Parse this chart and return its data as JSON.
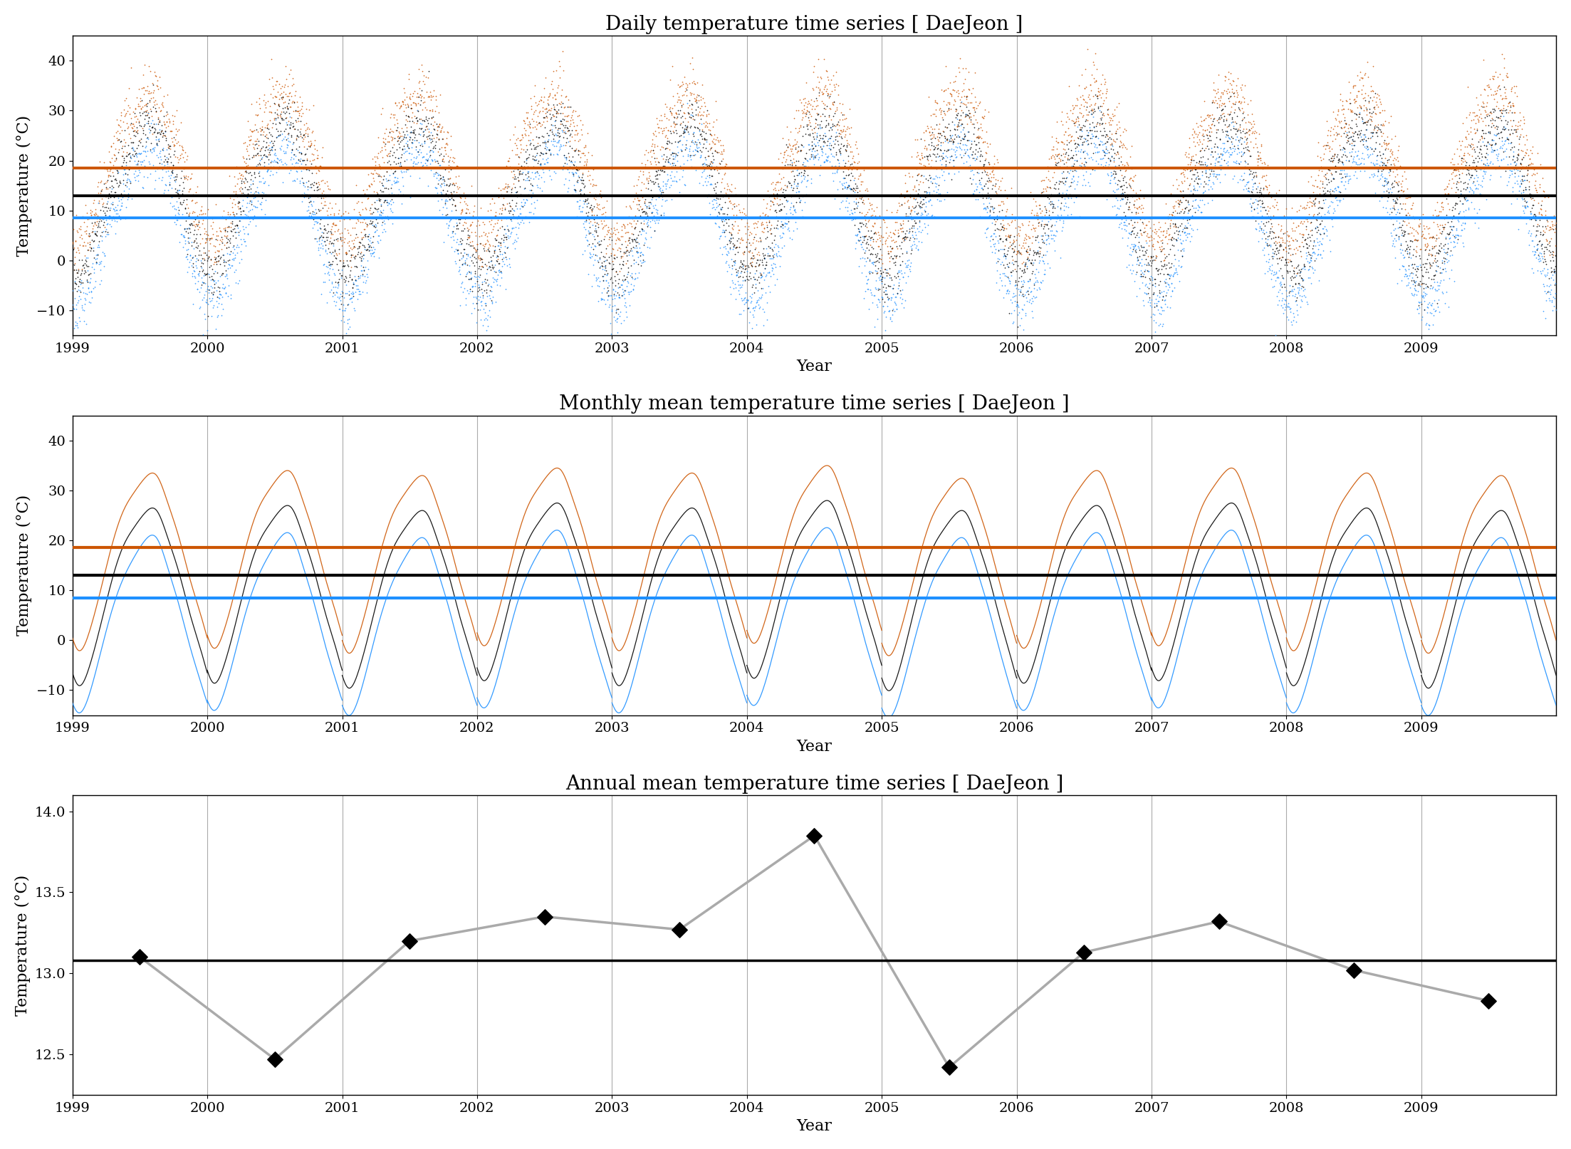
{
  "title1": "Daily temperature time series [ DaeJeon ]",
  "title2": "Monthly mean temperature time series [ DaeJeon ]",
  "title3": "Annual mean temperature time series [ DaeJeon ]",
  "ylabel": "Temperature (°C)",
  "xlabel": "Year",
  "daily_ylim": [
    -15,
    45
  ],
  "monthly_ylim": [
    -15,
    45
  ],
  "annual_ylim": [
    12.25,
    14.1
  ],
  "daily_mean_mean": 13.0,
  "daily_max_mean": 18.5,
  "daily_min_mean": 8.5,
  "monthly_mean_mean": 13.0,
  "monthly_max_mean": 18.5,
  "monthly_min_mean": 8.5,
  "annual_mean": 13.08,
  "annual_years": [
    1999.5,
    2000.5,
    2001.5,
    2002.5,
    2003.5,
    2004.5,
    2005.5,
    2006.5,
    2007.5,
    2008.5,
    2009.5
  ],
  "annual_values": [
    13.1,
    12.47,
    13.2,
    13.35,
    13.27,
    13.85,
    12.42,
    13.13,
    13.32,
    13.02,
    12.83
  ],
  "color_mean": "#000000",
  "color_max": "#cc5500",
  "color_min": "#1e90ff",
  "color_annual_line": "#aaaaaa",
  "color_hline_black": "#000000",
  "color_hline_orange": "#cc5500",
  "color_hline_blue": "#1e90ff",
  "title_fontsize": 20,
  "axis_fontsize": 16,
  "tick_fontsize": 14,
  "monthly_mean_seasonal": [
    [
      -9.0,
      -5.5,
      2.5,
      11.5,
      18.5,
      22.5,
      25.5,
      26.0,
      20.5,
      13.5,
      5.0,
      -2.5
    ],
    [
      -8.5,
      -5.0,
      3.0,
      12.0,
      19.0,
      23.0,
      26.0,
      26.5,
      21.0,
      14.0,
      5.5,
      -2.0
    ],
    [
      -9.5,
      -6.0,
      2.0,
      11.0,
      18.0,
      22.0,
      25.0,
      25.5,
      20.0,
      13.0,
      4.5,
      -3.0
    ],
    [
      -8.0,
      -4.5,
      3.5,
      12.5,
      19.5,
      23.5,
      26.5,
      27.0,
      21.5,
      14.5,
      6.0,
      -1.5
    ],
    [
      -9.0,
      -5.5,
      2.5,
      11.5,
      18.5,
      22.5,
      25.5,
      26.0,
      20.5,
      13.5,
      5.0,
      -2.5
    ],
    [
      -7.5,
      -4.0,
      4.0,
      13.0,
      20.0,
      24.0,
      27.0,
      27.5,
      22.0,
      15.0,
      6.5,
      -1.0
    ],
    [
      -10.0,
      -6.5,
      2.0,
      11.0,
      18.0,
      22.0,
      25.0,
      25.5,
      20.0,
      13.0,
      4.5,
      -3.5
    ],
    [
      -8.5,
      -5.0,
      3.0,
      12.0,
      19.0,
      23.0,
      26.0,
      26.5,
      21.0,
      14.0,
      5.5,
      -2.0
    ],
    [
      -8.0,
      -4.5,
      3.5,
      12.5,
      19.5,
      23.5,
      26.5,
      27.0,
      21.5,
      14.5,
      6.0,
      -1.5
    ],
    [
      -9.0,
      -5.5,
      2.5,
      11.5,
      18.5,
      22.5,
      25.5,
      26.0,
      20.5,
      13.5,
      5.0,
      -2.5
    ],
    [
      -9.5,
      -6.0,
      2.0,
      11.0,
      18.0,
      22.0,
      25.0,
      25.5,
      20.0,
      13.0,
      4.5,
      -3.0
    ]
  ],
  "monthly_max_seasonal": [
    [
      -2.0,
      1.5,
      9.5,
      18.5,
      25.5,
      29.5,
      32.5,
      33.0,
      27.5,
      20.5,
      12.0,
      4.5
    ],
    [
      -1.5,
      2.0,
      10.0,
      19.0,
      26.0,
      30.0,
      33.0,
      33.5,
      28.0,
      21.0,
      12.5,
      5.0
    ],
    [
      -2.5,
      1.0,
      9.0,
      18.0,
      25.0,
      29.0,
      32.0,
      32.5,
      27.0,
      20.0,
      11.5,
      4.0
    ],
    [
      -1.0,
      2.5,
      10.5,
      19.5,
      26.5,
      30.5,
      33.5,
      34.0,
      28.5,
      21.5,
      13.0,
      5.5
    ],
    [
      -2.0,
      1.5,
      9.5,
      18.5,
      25.5,
      29.5,
      32.5,
      33.0,
      27.5,
      20.5,
      12.0,
      4.5
    ],
    [
      -0.5,
      3.0,
      11.0,
      20.0,
      27.0,
      31.0,
      34.0,
      34.5,
      29.0,
      22.0,
      13.5,
      6.0
    ],
    [
      -3.0,
      0.5,
      8.5,
      17.5,
      24.5,
      28.5,
      31.5,
      32.0,
      27.0,
      20.0,
      11.5,
      3.5
    ],
    [
      -1.5,
      2.0,
      10.0,
      19.0,
      26.0,
      30.0,
      33.0,
      33.5,
      28.0,
      21.0,
      12.5,
      5.0
    ],
    [
      -1.0,
      2.5,
      10.5,
      19.5,
      26.5,
      30.5,
      33.5,
      34.0,
      28.5,
      21.5,
      13.0,
      5.5
    ],
    [
      -2.0,
      1.5,
      9.5,
      18.5,
      25.5,
      29.5,
      32.5,
      33.0,
      27.5,
      20.5,
      12.0,
      4.5
    ],
    [
      -2.5,
      1.0,
      9.0,
      18.0,
      25.0,
      29.0,
      32.0,
      32.5,
      27.0,
      20.0,
      11.5,
      4.0
    ]
  ],
  "monthly_min_seasonal": [
    [
      -14.5,
      -11.0,
      -3.0,
      5.5,
      12.0,
      16.5,
      20.0,
      20.5,
      14.5,
      7.0,
      -1.5,
      -9.0
    ],
    [
      -14.0,
      -10.5,
      -2.5,
      6.0,
      12.5,
      17.0,
      20.5,
      21.0,
      15.0,
      7.5,
      -1.0,
      -8.5
    ],
    [
      -15.0,
      -11.5,
      -3.5,
      5.0,
      11.5,
      16.0,
      19.5,
      20.0,
      14.0,
      6.5,
      -2.0,
      -9.5
    ],
    [
      -13.5,
      -10.0,
      -2.0,
      6.5,
      13.0,
      17.5,
      21.0,
      21.5,
      15.5,
      8.0,
      -0.5,
      -8.0
    ],
    [
      -14.5,
      -11.0,
      -3.0,
      5.5,
      12.0,
      16.5,
      20.0,
      20.5,
      14.5,
      7.0,
      -1.5,
      -9.0
    ],
    [
      -13.0,
      -9.5,
      -1.5,
      7.0,
      13.5,
      18.0,
      21.5,
      22.0,
      16.0,
      8.5,
      0.0,
      -7.5
    ],
    [
      -15.5,
      -12.0,
      -4.0,
      4.5,
      11.5,
      16.0,
      19.5,
      20.0,
      14.0,
      6.5,
      -2.0,
      -10.0
    ],
    [
      -14.0,
      -10.5,
      -2.5,
      6.0,
      12.5,
      17.0,
      20.5,
      21.0,
      15.0,
      7.5,
      -1.0,
      -8.5
    ],
    [
      -13.5,
      -10.0,
      -2.0,
      6.5,
      13.0,
      17.5,
      21.0,
      21.5,
      15.5,
      8.0,
      -0.5,
      -8.0
    ],
    [
      -14.5,
      -11.0,
      -3.0,
      5.5,
      12.0,
      16.5,
      20.0,
      20.5,
      14.5,
      7.0,
      -1.5,
      -9.0
    ],
    [
      -15.0,
      -11.5,
      -3.5,
      5.0,
      11.5,
      16.0,
      19.5,
      20.0,
      14.0,
      6.5,
      -2.0,
      -9.5
    ]
  ]
}
